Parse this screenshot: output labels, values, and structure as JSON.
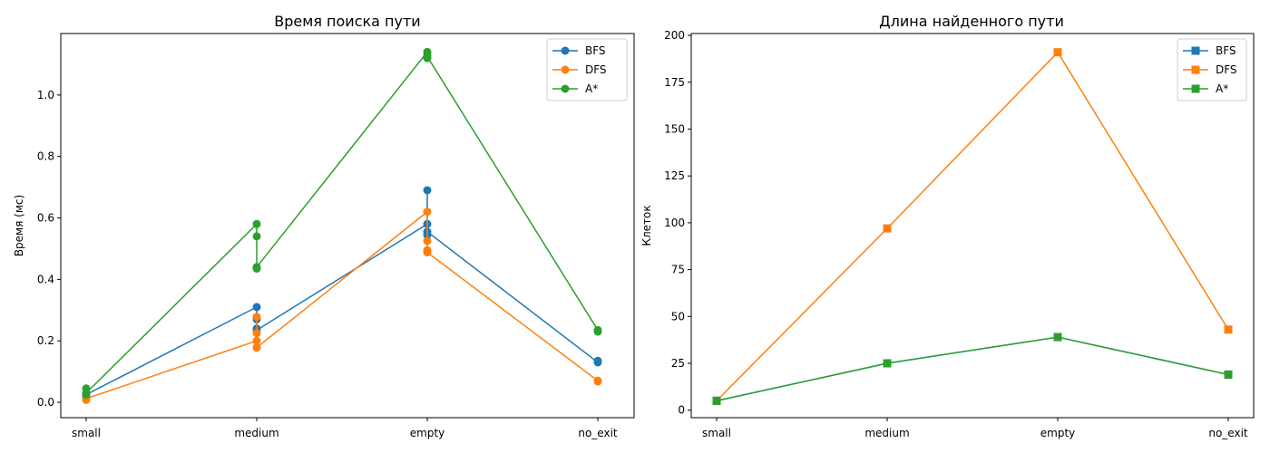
{
  "chart_data": [
    {
      "type": "line",
      "title": "Время поиска пути",
      "xlabel": "",
      "ylabel": "Время (мс)",
      "categories": [
        "small",
        "medium",
        "empty",
        "no_exit"
      ],
      "ylim": [
        -0.05,
        1.2
      ],
      "yticks": [
        0.0,
        0.2,
        0.4,
        0.6,
        0.8,
        1.0
      ],
      "ytick_labels": [
        "0.0",
        "0.2",
        "0.4",
        "0.6",
        "0.8",
        "1.0"
      ],
      "marker": "circle",
      "legend": "top-right",
      "series": [
        {
          "name": "BFS",
          "color": "#1f77b4",
          "points": [
            [
              0,
              0.02
            ],
            [
              0,
              0.015
            ],
            [
              0,
              0.025
            ],
            [
              1,
              0.31
            ],
            [
              1,
              0.27
            ],
            [
              1,
              0.24
            ],
            [
              1,
              0.235
            ],
            [
              2,
              0.58
            ],
            [
              2,
              0.69
            ],
            [
              2,
              0.545
            ],
            [
              2,
              0.555
            ],
            [
              3,
              0.13
            ],
            [
              3,
              0.135
            ]
          ]
        },
        {
          "name": "DFS",
          "color": "#ff7f0e",
          "points": [
            [
              0,
              0.01
            ],
            [
              0,
              0.008
            ],
            [
              0,
              0.012
            ],
            [
              1,
              0.2
            ],
            [
              1,
              0.225
            ],
            [
              1,
              0.278
            ],
            [
              1,
              0.178
            ],
            [
              2,
              0.62
            ],
            [
              2,
              0.525
            ],
            [
              2,
              0.495
            ],
            [
              2,
              0.488
            ],
            [
              3,
              0.07
            ],
            [
              3,
              0.068
            ]
          ]
        },
        {
          "name": "A*",
          "color": "#2ca02c",
          "points": [
            [
              0,
              0.025
            ],
            [
              0,
              0.045
            ],
            [
              0,
              0.03
            ],
            [
              1,
              0.58
            ],
            [
              1,
              0.54
            ],
            [
              1,
              0.435
            ],
            [
              1,
              0.44
            ],
            [
              2,
              1.14
            ],
            [
              2,
              1.12
            ],
            [
              2,
              1.13
            ],
            [
              2,
              1.125
            ],
            [
              3,
              0.235
            ],
            [
              3,
              0.23
            ]
          ]
        }
      ]
    },
    {
      "type": "line",
      "title": "Длина найденного пути",
      "xlabel": "",
      "ylabel": "Клеток",
      "categories": [
        "small",
        "medium",
        "empty",
        "no_exit"
      ],
      "ylim": [
        -4,
        201
      ],
      "yticks": [
        0,
        25,
        50,
        75,
        100,
        125,
        150,
        175,
        200
      ],
      "ytick_labels": [
        "0",
        "25",
        "50",
        "75",
        "100",
        "125",
        "150",
        "175",
        "200"
      ],
      "marker": "square",
      "legend": "top-right",
      "series": [
        {
          "name": "BFS",
          "color": "#1f77b4",
          "values": [
            5,
            25,
            39,
            19
          ]
        },
        {
          "name": "DFS",
          "color": "#ff7f0e",
          "values": [
            5,
            97,
            191,
            43
          ]
        },
        {
          "name": "A*",
          "color": "#2ca02c",
          "values": [
            5,
            25,
            39,
            19
          ]
        }
      ]
    }
  ]
}
